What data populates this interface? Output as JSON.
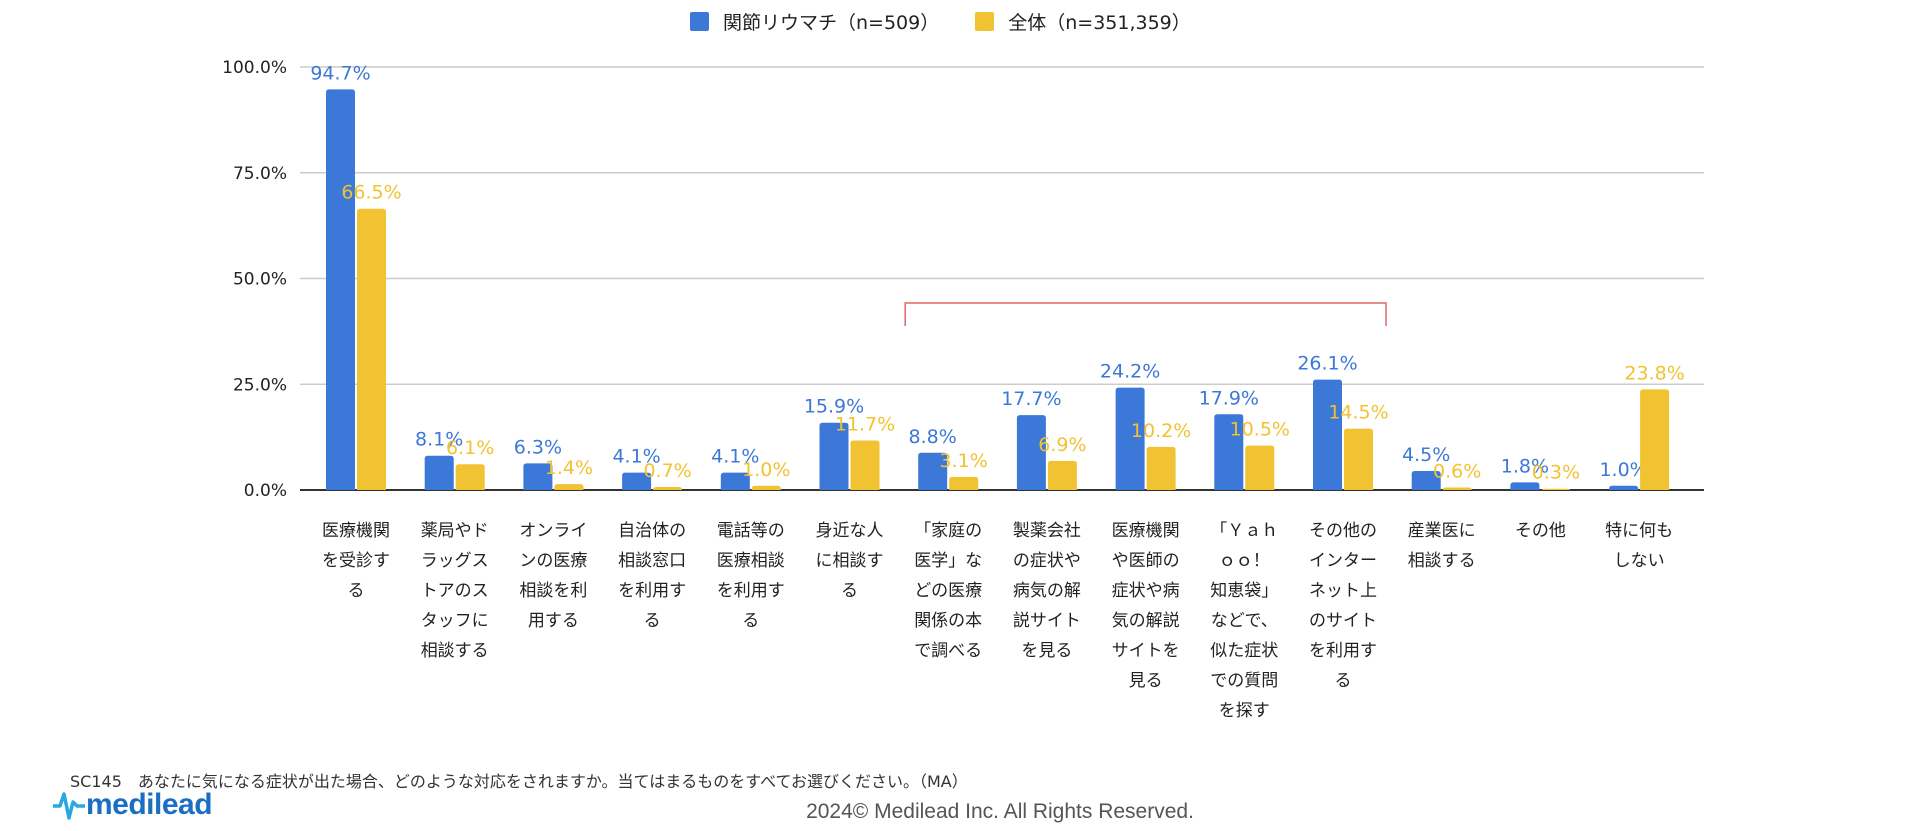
{
  "chart_data": {
    "type": "bar",
    "categories": [
      [
        "医療機関",
        "を受診す",
        "る"
      ],
      [
        "薬局やド",
        "ラッグス",
        "トアのス",
        "タッフに",
        "相談する"
      ],
      [
        "オンライ",
        "ンの医療",
        "相談を利",
        "用する"
      ],
      [
        "自治体の",
        "相談窓口",
        "を利用す",
        "る"
      ],
      [
        "電話等の",
        "医療相談",
        "を利用す",
        "る"
      ],
      [
        "身近な人",
        "に相談す",
        "る"
      ],
      [
        "「家庭の",
        "医学」な",
        "どの医療",
        "関係の本",
        "で調べる"
      ],
      [
        "製薬会社",
        "の症状や",
        "病気の解",
        "説サイト",
        "を見る"
      ],
      [
        "医療機関",
        "や医師の",
        "症状や病",
        "気の解説",
        "サイトを",
        "見る"
      ],
      [
        "「Ｙａｈ",
        "ｏｏ！",
        "知恵袋」",
        "などで、",
        "似た症状",
        "での質問",
        "を探す"
      ],
      [
        "その他の",
        "インター",
        "ネット上",
        "のサイト",
        "を利用す",
        "る"
      ],
      [
        "産業医に",
        "相談する"
      ],
      [
        "その他"
      ],
      [
        "特に何も",
        "しない"
      ]
    ],
    "series": [
      {
        "name": "関節リウマチ（n=509）",
        "color": "#3c78d8",
        "values": [
          94.7,
          8.1,
          6.3,
          4.1,
          4.1,
          15.9,
          8.8,
          17.7,
          24.2,
          17.9,
          26.1,
          4.5,
          1.8,
          1.0
        ]
      },
      {
        "name": "全体（n=351,359）",
        "color": "#f1c232",
        "values": [
          66.5,
          6.1,
          1.4,
          0.7,
          1.0,
          11.7,
          3.1,
          6.9,
          10.2,
          10.5,
          14.5,
          0.6,
          0.3,
          23.8
        ]
      }
    ],
    "yticks": [
      "0.0%",
      "25.0%",
      "50.0%",
      "75.0%",
      "100.0%"
    ],
    "ylim": [
      0,
      100
    ],
    "grid": true,
    "legend": "top-center",
    "data_labels": true,
    "annotation": {
      "type": "bracket",
      "from_category": 6,
      "to_category": 10,
      "color": "#e06666"
    }
  },
  "footnote": "SC145　あなたに気になる症状が出た場合、どのような対応をされますか。当てはまるものをすべてお選びください。（MA）",
  "logo": "medilead",
  "copyright": "2024© Medilead Inc. All Rights Reserved."
}
